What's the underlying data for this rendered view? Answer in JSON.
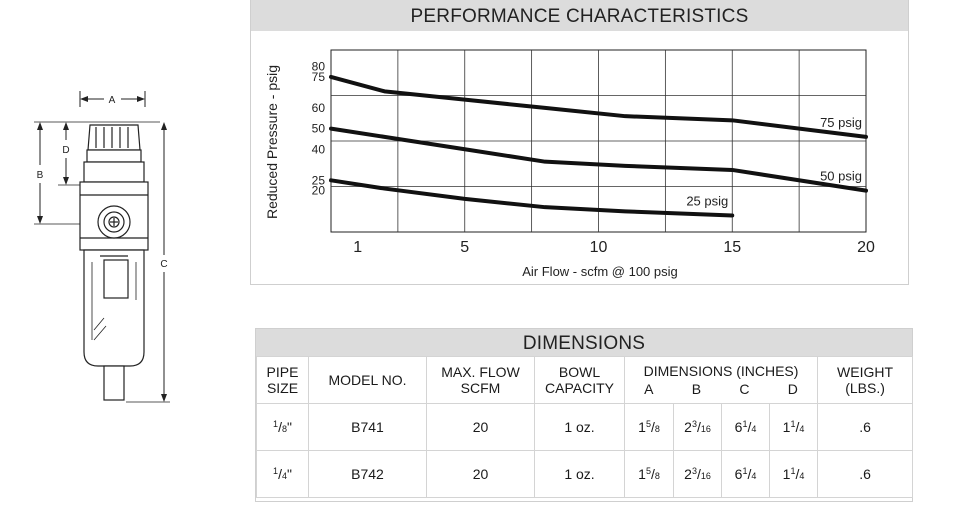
{
  "drawing": {
    "labels": {
      "a": "A",
      "b": "B",
      "c": "C",
      "d": "D"
    }
  },
  "performance": {
    "title": "PERFORMANCE CHARACTERISTICS",
    "chart_data": {
      "type": "line",
      "title": "PERFORMANCE CHARACTERISTICS",
      "xlabel": "Air Flow - scfm @ 100 psig",
      "ylabel": "Reduced Pressure - psig",
      "x_ticks": [
        "1",
        "5",
        "10",
        "15",
        "20"
      ],
      "x_tick_values": [
        1,
        5,
        10,
        15,
        20
      ],
      "y_ticks": [
        "80",
        "75",
        "60",
        "50",
        "40",
        "25",
        "20"
      ],
      "y_tick_values": [
        80,
        75,
        60,
        50,
        40,
        25,
        20
      ],
      "xlim": [
        0,
        20
      ],
      "ylim": [
        0,
        88
      ],
      "grid": true,
      "series": [
        {
          "name": "75 psig",
          "x": [
            0,
            2,
            5,
            8,
            11,
            15,
            20
          ],
          "y": [
            75,
            68,
            64,
            60,
            56,
            54,
            46
          ]
        },
        {
          "name": "50 psig",
          "x": [
            0,
            2,
            5,
            8,
            11,
            15,
            20
          ],
          "y": [
            50,
            46,
            40,
            34,
            32,
            30,
            20
          ]
        },
        {
          "name": "25 psig",
          "x": [
            0,
            2,
            5,
            8,
            11,
            15
          ],
          "y": [
            25,
            21,
            16,
            12,
            10,
            8
          ]
        }
      ]
    }
  },
  "dimensions": {
    "title": "DIMENSIONS",
    "headers": {
      "pipe_size": [
        "PIPE",
        "SIZE"
      ],
      "model": "MODEL NO.",
      "max_flow": [
        "MAX. FLOW",
        "SCFM"
      ],
      "bowl": [
        "BOWL",
        "CAPACITY"
      ],
      "dims": "DIMENSIONS (INCHES)",
      "dim_letters": [
        "A",
        "B",
        "C",
        "D"
      ],
      "weight": [
        "WEIGHT",
        "(LBS.)"
      ]
    },
    "rows": [
      {
        "pipe": {
          "num": "1",
          "den": "8",
          "mark": "\""
        },
        "model": "B741",
        "flow": "20",
        "bowl": "1 oz.",
        "a": {
          "whole": "1",
          "num": "5",
          "den": "8"
        },
        "b": {
          "whole": "2",
          "num": "3",
          "den": "16"
        },
        "c": {
          "whole": "6",
          "num": "1",
          "den": "4"
        },
        "d": {
          "whole": "1",
          "num": "1",
          "den": "4"
        },
        "weight": ".6"
      },
      {
        "pipe": {
          "num": "1",
          "den": "4",
          "mark": "\""
        },
        "model": "B742",
        "flow": "20",
        "bowl": "1 oz.",
        "a": {
          "whole": "1",
          "num": "5",
          "den": "8"
        },
        "b": {
          "whole": "2",
          "num": "3",
          "den": "16"
        },
        "c": {
          "whole": "6",
          "num": "1",
          "den": "4"
        },
        "d": {
          "whole": "1",
          "num": "1",
          "den": "4"
        },
        "weight": ".6"
      }
    ]
  }
}
